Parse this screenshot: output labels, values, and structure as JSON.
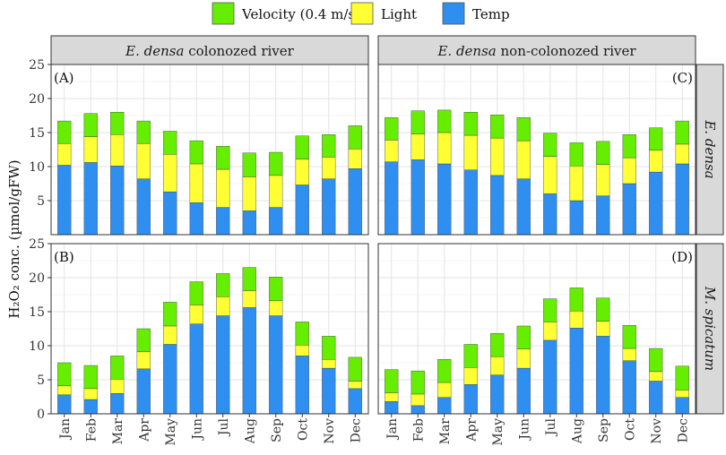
{
  "chart_data": {
    "type": "bar",
    "stacked": true,
    "legend": {
      "position": "top",
      "items": [
        {
          "key": "velocity",
          "label": "Velocity (0.4 m/s)",
          "color": "#66ee00"
        },
        {
          "key": "light",
          "label": "Light",
          "color": "#ffff33"
        },
        {
          "key": "temp",
          "label": "Temp",
          "color": "#2f8ff0"
        }
      ]
    },
    "ylabel": "H₂O₂ conc. (µmol/gFW)",
    "ylim": [
      0,
      25
    ],
    "yticks": [
      0,
      5,
      10,
      15,
      20,
      25
    ],
    "categories": [
      "Jan",
      "Feb",
      "Mar",
      "Apr",
      "May",
      "Jun",
      "Jul",
      "Aug",
      "Sep",
      "Oct",
      "Nov",
      "Dec"
    ],
    "columns": [
      {
        "title_italic": "E. densa",
        "title_rest": " colonozed river"
      },
      {
        "title_italic": "E. densa",
        "title_rest": " non-colonozed river"
      }
    ],
    "rows": [
      {
        "title": "E. densa"
      },
      {
        "title": "M. spicatum"
      }
    ],
    "panels": [
      {
        "tag": "(A)",
        "row": 0,
        "col": 0,
        "series": {
          "temp": [
            10.2,
            10.6,
            10.1,
            8.2,
            6.3,
            4.7,
            4.0,
            3.5,
            4.0,
            7.3,
            8.2,
            9.7
          ],
          "light": [
            3.2,
            3.8,
            4.6,
            5.2,
            5.5,
            5.7,
            5.6,
            5.0,
            4.7,
            3.8,
            3.2,
            2.9
          ],
          "velocity": [
            3.3,
            3.4,
            3.3,
            3.3,
            3.4,
            3.4,
            3.4,
            3.5,
            3.4,
            3.4,
            3.3,
            3.4
          ]
        }
      },
      {
        "tag": "(C)",
        "row": 0,
        "col": 1,
        "series": {
          "temp": [
            10.7,
            11.0,
            10.4,
            9.5,
            8.7,
            8.2,
            6.0,
            5.0,
            5.7,
            7.5,
            9.2,
            10.4
          ],
          "light": [
            3.2,
            3.8,
            4.6,
            5.1,
            5.5,
            5.6,
            5.5,
            5.1,
            4.6,
            3.8,
            3.2,
            2.9
          ],
          "velocity": [
            3.3,
            3.4,
            3.3,
            3.4,
            3.4,
            3.4,
            3.4,
            3.4,
            3.4,
            3.4,
            3.3,
            3.4
          ]
        }
      },
      {
        "tag": "(B)",
        "row": 1,
        "col": 0,
        "series": {
          "temp": [
            2.8,
            2.1,
            3.0,
            6.6,
            10.2,
            13.2,
            14.4,
            15.6,
            14.4,
            8.5,
            6.7,
            3.7
          ],
          "light": [
            1.3,
            1.6,
            2.1,
            2.5,
            2.7,
            2.8,
            2.8,
            2.5,
            2.2,
            1.6,
            1.3,
            1.1
          ],
          "velocity": [
            3.4,
            3.4,
            3.4,
            3.4,
            3.5,
            3.4,
            3.4,
            3.4,
            3.5,
            3.4,
            3.4,
            3.5
          ]
        }
      },
      {
        "tag": "(D)",
        "row": 1,
        "col": 1,
        "series": {
          "temp": [
            1.8,
            1.2,
            2.4,
            4.3,
            5.7,
            6.7,
            10.8,
            12.6,
            11.4,
            7.8,
            4.8,
            2.4
          ],
          "light": [
            1.3,
            1.7,
            2.2,
            2.5,
            2.7,
            2.8,
            2.7,
            2.5,
            2.2,
            1.8,
            1.4,
            1.1
          ],
          "velocity": [
            3.4,
            3.4,
            3.4,
            3.4,
            3.4,
            3.4,
            3.4,
            3.4,
            3.4,
            3.4,
            3.4,
            3.5
          ]
        }
      }
    ]
  }
}
